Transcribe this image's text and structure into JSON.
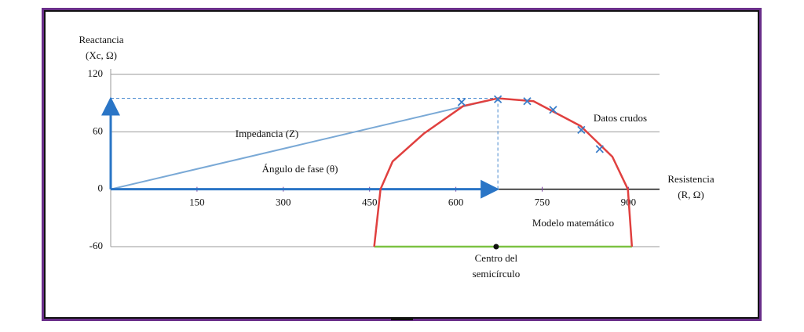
{
  "chart_data": {
    "type": "scatter",
    "y_label": [
      "Reactancia",
      "(Xc, Ω)"
    ],
    "x_label": [
      "Resistencia",
      "(R, Ω)"
    ],
    "xlim": [
      0,
      954
    ],
    "ylim": [
      -60,
      120
    ],
    "xticks": [
      150,
      300,
      450,
      600,
      750,
      900
    ],
    "yticks": [
      -60,
      0,
      60,
      120
    ],
    "grid": true,
    "series": [
      {
        "name": "Datos crudos",
        "color": "#3a7dc9",
        "marker": "x",
        "x": [
          610,
          673,
          724,
          769,
          818,
          850
        ],
        "values": [
          91,
          94,
          92,
          83,
          62,
          42
        ]
      },
      {
        "name": "Modelo matemático",
        "color": "#e0403f",
        "marker": "line",
        "x": [
          458,
          469,
          490,
          544,
          613,
          673,
          735,
          817,
          872,
          899,
          906
        ],
        "values": [
          -60,
          0,
          29,
          58,
          87,
          95,
          92,
          66,
          34,
          0,
          -60
        ]
      }
    ],
    "impedance": {
      "label": "Impedancia (Z)",
      "x": 673,
      "y": 95,
      "color": "#7aa9d6"
    },
    "phase_angle": {
      "label": "Ángulo de fase (θ)",
      "color": "#2a75c6"
    },
    "base_line": {
      "x": [
        458,
        906
      ],
      "y": -60,
      "color": "#7cc242"
    },
    "center": {
      "label": [
        "Centro del",
        "semicírculo"
      ],
      "x": 670,
      "y": -60
    }
  }
}
